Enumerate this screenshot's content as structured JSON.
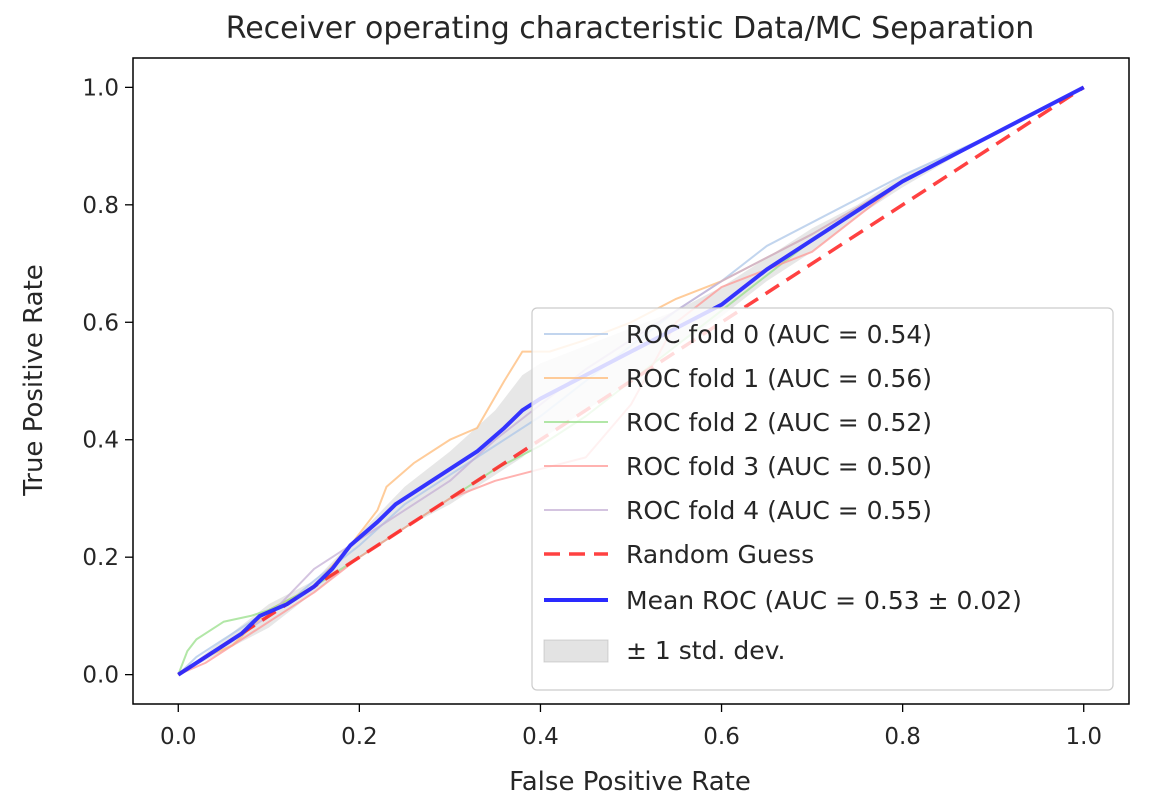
{
  "chart_data": {
    "type": "line",
    "title": "Receiver operating characteristic Data/MC Separation",
    "xlabel": "False Positive Rate",
    "ylabel": "True Positive Rate",
    "xlim": [
      -0.05,
      1.05
    ],
    "ylim": [
      -0.05,
      1.05
    ],
    "xticks": [
      "0.0",
      "0.2",
      "0.4",
      "0.6",
      "0.8",
      "1.0"
    ],
    "yticks": [
      "0.0",
      "0.2",
      "0.4",
      "0.6",
      "0.8",
      "1.0"
    ],
    "grid": false,
    "legend_position": "lower-right",
    "series": [
      {
        "name": "ROC fold 0 (AUC = 0.54)",
        "color": "#aec7e8",
        "x": [
          0,
          0.02,
          0.05,
          0.08,
          0.1,
          0.12,
          0.15,
          0.2,
          0.25,
          0.3,
          0.35,
          0.4,
          0.45,
          0.5,
          0.55,
          0.6,
          0.65,
          0.7,
          0.75,
          0.8,
          0.9,
          1.0
        ],
        "y": [
          0,
          0.03,
          0.06,
          0.09,
          0.11,
          0.12,
          0.16,
          0.22,
          0.29,
          0.34,
          0.39,
          0.44,
          0.5,
          0.56,
          0.62,
          0.67,
          0.73,
          0.77,
          0.81,
          0.85,
          0.92,
          1.0
        ]
      },
      {
        "name": "ROC fold 1 (AUC = 0.56)",
        "color": "#ffbb78",
        "x": [
          0,
          0.03,
          0.06,
          0.1,
          0.15,
          0.19,
          0.22,
          0.23,
          0.26,
          0.3,
          0.33,
          0.36,
          0.38,
          0.41,
          0.45,
          0.5,
          0.55,
          0.6,
          0.65,
          0.7,
          0.8,
          0.9,
          1.0
        ],
        "y": [
          0,
          0.03,
          0.05,
          0.11,
          0.15,
          0.22,
          0.28,
          0.32,
          0.36,
          0.4,
          0.42,
          0.5,
          0.55,
          0.55,
          0.57,
          0.6,
          0.64,
          0.67,
          0.71,
          0.75,
          0.84,
          0.92,
          1.0
        ]
      },
      {
        "name": "ROC fold 2 (AUC = 0.52)",
        "color": "#98df8a",
        "x": [
          0,
          0.01,
          0.02,
          0.05,
          0.08,
          0.1,
          0.15,
          0.2,
          0.25,
          0.3,
          0.35,
          0.4,
          0.45,
          0.5,
          0.55,
          0.6,
          0.65,
          0.7,
          0.8,
          0.9,
          1.0
        ],
        "y": [
          0,
          0.04,
          0.06,
          0.09,
          0.1,
          0.11,
          0.15,
          0.2,
          0.25,
          0.3,
          0.35,
          0.39,
          0.44,
          0.5,
          0.56,
          0.62,
          0.68,
          0.74,
          0.84,
          0.92,
          1.0
        ]
      },
      {
        "name": "ROC fold 3 (AUC = 0.50)",
        "color": "#ff9896",
        "x": [
          0,
          0.03,
          0.06,
          0.1,
          0.15,
          0.2,
          0.25,
          0.3,
          0.35,
          0.4,
          0.45,
          0.5,
          0.55,
          0.6,
          0.65,
          0.7,
          0.75,
          0.8,
          0.9,
          1.0
        ],
        "y": [
          0,
          0.02,
          0.05,
          0.09,
          0.14,
          0.2,
          0.25,
          0.3,
          0.33,
          0.35,
          0.37,
          0.46,
          0.6,
          0.66,
          0.69,
          0.72,
          0.78,
          0.84,
          0.92,
          1.0
        ]
      },
      {
        "name": "ROC fold 4 (AUC = 0.55)",
        "color": "#c5b0d5",
        "x": [
          0,
          0.03,
          0.06,
          0.1,
          0.15,
          0.2,
          0.25,
          0.3,
          0.35,
          0.4,
          0.45,
          0.5,
          0.55,
          0.6,
          0.65,
          0.7,
          0.8,
          0.9,
          1.0
        ],
        "y": [
          0,
          0.03,
          0.06,
          0.1,
          0.18,
          0.23,
          0.28,
          0.33,
          0.4,
          0.46,
          0.52,
          0.57,
          0.62,
          0.67,
          0.71,
          0.75,
          0.84,
          0.92,
          1.0
        ]
      },
      {
        "name": "Random Guess",
        "color": "#ff2020",
        "dash": true,
        "x": [
          0,
          1
        ],
        "y": [
          0,
          1
        ]
      },
      {
        "name": "Mean ROC (AUC = 0.53 ± 0.02)",
        "color": "#2a2aff",
        "mean": true,
        "x": [
          0,
          0.02,
          0.05,
          0.07,
          0.09,
          0.12,
          0.15,
          0.17,
          0.19,
          0.22,
          0.24,
          0.27,
          0.3,
          0.33,
          0.36,
          0.38,
          0.4,
          0.45,
          0.5,
          0.55,
          0.6,
          0.65,
          0.7,
          0.75,
          0.8,
          0.9,
          1.0
        ],
        "y": [
          0,
          0.02,
          0.05,
          0.07,
          0.1,
          0.12,
          0.15,
          0.18,
          0.22,
          0.26,
          0.29,
          0.32,
          0.35,
          0.38,
          0.42,
          0.45,
          0.47,
          0.51,
          0.55,
          0.59,
          0.63,
          0.69,
          0.74,
          0.79,
          0.84,
          0.92,
          1.0
        ]
      }
    ],
    "std_band": {
      "name": "± 1 std. dev.",
      "color": "#b0b0b0",
      "x": [
        0,
        0.05,
        0.1,
        0.15,
        0.2,
        0.25,
        0.3,
        0.35,
        0.38,
        0.4,
        0.45,
        0.5,
        0.55,
        0.6,
        0.65,
        0.7,
        0.75,
        0.8,
        0.9,
        1.0
      ],
      "upper": [
        0,
        0.06,
        0.12,
        0.16,
        0.24,
        0.32,
        0.38,
        0.45,
        0.51,
        0.53,
        0.56,
        0.59,
        0.62,
        0.66,
        0.71,
        0.76,
        0.8,
        0.85,
        0.92,
        1.0
      ],
      "lower": [
        0,
        0.04,
        0.08,
        0.14,
        0.2,
        0.25,
        0.29,
        0.34,
        0.37,
        0.4,
        0.45,
        0.5,
        0.56,
        0.61,
        0.67,
        0.72,
        0.78,
        0.83,
        0.92,
        1.0
      ]
    }
  }
}
